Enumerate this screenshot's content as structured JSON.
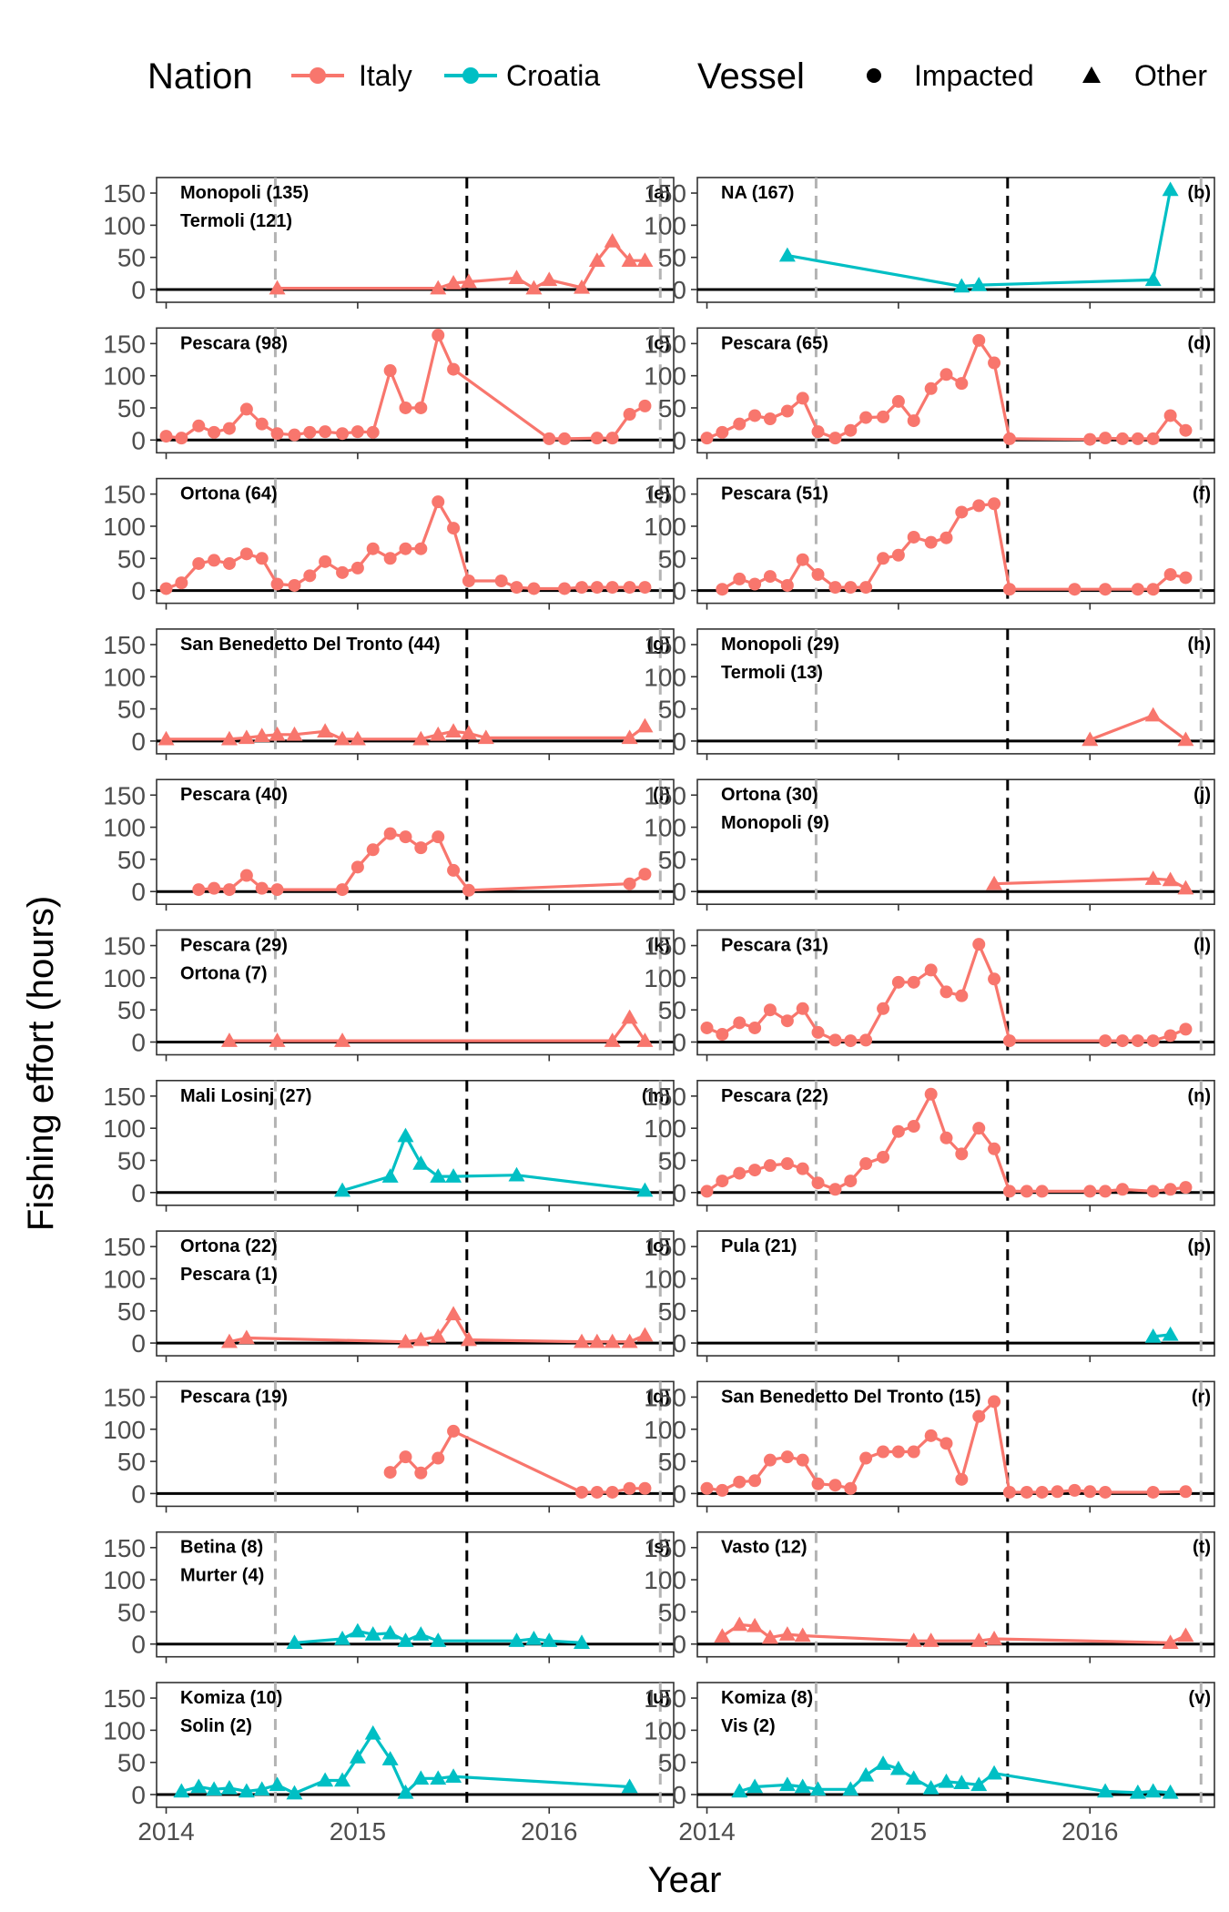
{
  "chart_data": {
    "type": "line",
    "xlabel": "Year",
    "ylabel": "Fishing effort (hours)",
    "xlim": [
      2013.95,
      2016.65
    ],
    "ylim": [
      0,
      160
    ],
    "x_ticks": [
      2014,
      2015,
      2016
    ],
    "x_tick_labels": [
      "2014",
      "2015",
      "2016"
    ],
    "y_ticks": [
      0,
      50,
      100,
      150
    ],
    "y_tick_labels": [
      "0",
      "50",
      "100",
      "150"
    ],
    "grid": false,
    "reference_lines": {
      "gray_dashed": [
        2014.57,
        2016.58
      ],
      "black_dashed": [
        2015.57
      ]
    },
    "legend": {
      "placement": "top",
      "nation_title": "Nation",
      "vessel_title": "Vessel",
      "nation_entries": [
        {
          "name": "Italy",
          "color": "#F8766D"
        },
        {
          "name": "Croatia",
          "color": "#00BFC4"
        }
      ],
      "vessel_entries": [
        {
          "name": "Impacted",
          "shape": "circle"
        },
        {
          "name": "Other",
          "shape": "triangle"
        }
      ]
    },
    "panels": [
      {
        "id": "(a)",
        "ports": [
          "Monopoli (135)",
          "Termoli (121)"
        ],
        "nation": "Italy",
        "vessel": "Other",
        "x": [
          2014.58,
          2015.42,
          2015.5,
          2015.58,
          2015.83,
          2015.92,
          2016.0,
          2016.17,
          2016.25,
          2016.33,
          2016.42,
          2016.5
        ],
        "y": [
          2,
          2,
          10,
          12,
          18,
          2,
          15,
          3,
          45,
          75,
          45,
          45
        ]
      },
      {
        "id": "(b)",
        "ports": [
          "NA (167)"
        ],
        "nation": "Croatia",
        "vessel": "Other",
        "x": [
          2014.42,
          2015.33,
          2015.42,
          2016.33,
          2016.42
        ],
        "y": [
          53,
          5,
          7,
          15,
          155
        ]
      },
      {
        "id": "(c)",
        "ports": [
          "Pescara (98)"
        ],
        "nation": "Italy",
        "vessel": "Impacted",
        "x": [
          2014.0,
          2014.08,
          2014.17,
          2014.25,
          2014.33,
          2014.42,
          2014.5,
          2014.58,
          2014.67,
          2014.75,
          2014.83,
          2014.92,
          2015.0,
          2015.08,
          2015.17,
          2015.25,
          2015.33,
          2015.42,
          2015.5,
          2016.0,
          2016.08,
          2016.25,
          2016.33,
          2016.42,
          2016.5
        ],
        "y": [
          6,
          3,
          22,
          12,
          18,
          48,
          25,
          10,
          8,
          12,
          13,
          10,
          13,
          12,
          108,
          50,
          50,
          163,
          110,
          2,
          2,
          3,
          3,
          40,
          53
        ]
      },
      {
        "id": "(d)",
        "ports": [
          "Pescara (65)"
        ],
        "nation": "Italy",
        "vessel": "Impacted",
        "x": [
          2014.0,
          2014.08,
          2014.17,
          2014.25,
          2014.33,
          2014.42,
          2014.5,
          2014.58,
          2014.67,
          2014.75,
          2014.83,
          2014.92,
          2015.0,
          2015.08,
          2015.17,
          2015.25,
          2015.33,
          2015.42,
          2015.5,
          2015.58,
          2016.0,
          2016.08,
          2016.17,
          2016.25,
          2016.33,
          2016.42,
          2016.5
        ],
        "y": [
          3,
          12,
          25,
          38,
          33,
          45,
          65,
          13,
          3,
          15,
          35,
          36,
          60,
          30,
          80,
          102,
          88,
          155,
          120,
          2,
          1,
          3,
          2,
          2,
          2,
          38,
          15
        ]
      },
      {
        "id": "(e)",
        "ports": [
          "Ortona (64)"
        ],
        "nation": "Italy",
        "vessel": "Impacted",
        "x": [
          2014.0,
          2014.08,
          2014.17,
          2014.25,
          2014.33,
          2014.42,
          2014.5,
          2014.58,
          2014.67,
          2014.75,
          2014.83,
          2014.92,
          2015.0,
          2015.08,
          2015.17,
          2015.25,
          2015.33,
          2015.42,
          2015.5,
          2015.58,
          2015.75,
          2015.83,
          2015.92,
          2016.08,
          2016.17,
          2016.25,
          2016.33,
          2016.42,
          2016.5
        ],
        "y": [
          3,
          12,
          42,
          47,
          42,
          57,
          50,
          10,
          8,
          23,
          45,
          28,
          35,
          65,
          50,
          65,
          65,
          138,
          97,
          15,
          15,
          5,
          3,
          3,
          5,
          5,
          5,
          5,
          5
        ]
      },
      {
        "id": "(f)",
        "ports": [
          "Pescara (51)"
        ],
        "nation": "Italy",
        "vessel": "Impacted",
        "x": [
          2014.08,
          2014.17,
          2014.25,
          2014.33,
          2014.42,
          2014.5,
          2014.58,
          2014.67,
          2014.75,
          2014.83,
          2014.92,
          2015.0,
          2015.08,
          2015.17,
          2015.25,
          2015.33,
          2015.42,
          2015.5,
          2015.58,
          2015.92,
          2016.08,
          2016.25,
          2016.33,
          2016.42,
          2016.5
        ],
        "y": [
          2,
          18,
          10,
          22,
          8,
          48,
          25,
          5,
          5,
          5,
          50,
          55,
          83,
          75,
          82,
          122,
          132,
          135,
          2,
          2,
          2,
          2,
          2,
          25,
          20
        ]
      },
      {
        "id": "(g)",
        "ports": [
          "San Benedetto Del Tronto (44)"
        ],
        "nation": "Italy",
        "vessel": "Other",
        "x": [
          2014.0,
          2014.33,
          2014.42,
          2014.5,
          2014.58,
          2014.67,
          2014.83,
          2014.92,
          2015.0,
          2015.33,
          2015.42,
          2015.5,
          2015.58,
          2015.67,
          2016.42,
          2016.5
        ],
        "y": [
          3,
          3,
          5,
          8,
          10,
          10,
          15,
          3,
          3,
          3,
          10,
          15,
          12,
          5,
          5,
          23
        ]
      },
      {
        "id": "(h)",
        "ports": [
          "Monopoli (29)",
          "Termoli (13)"
        ],
        "nation": "Italy",
        "vessel": "Other",
        "x": [
          2016.0,
          2016.33,
          2016.5
        ],
        "y": [
          2,
          40,
          2
        ]
      },
      {
        "id": "(i)",
        "ports": [
          "Pescara (40)"
        ],
        "nation": "Italy",
        "vessel": "Impacted",
        "x": [
          2014.17,
          2014.25,
          2014.33,
          2014.42,
          2014.5,
          2014.58,
          2014.92,
          2015.0,
          2015.08,
          2015.17,
          2015.25,
          2015.33,
          2015.42,
          2015.5,
          2015.58,
          2016.42,
          2016.5
        ],
        "y": [
          3,
          5,
          3,
          25,
          5,
          3,
          3,
          38,
          65,
          90,
          85,
          68,
          85,
          33,
          2,
          12,
          27
        ]
      },
      {
        "id": "(j)",
        "ports": [
          "Ortona (30)",
          "Monopoli (9)"
        ],
        "nation": "Italy",
        "vessel": "Other",
        "x": [
          2015.5,
          2016.33,
          2016.42,
          2016.5
        ],
        "y": [
          12,
          20,
          18,
          5
        ]
      },
      {
        "id": "(k)",
        "ports": [
          "Pescara (29)",
          "Ortona (7)"
        ],
        "nation": "Italy",
        "vessel": "Other",
        "x": [
          2014.33,
          2014.58,
          2014.92,
          2016.33,
          2016.42,
          2016.5
        ],
        "y": [
          2,
          2,
          2,
          2,
          38,
          2
        ]
      },
      {
        "id": "(l)",
        "ports": [
          "Pescara (31)"
        ],
        "nation": "Italy",
        "vessel": "Impacted",
        "x": [
          2014.0,
          2014.08,
          2014.17,
          2014.25,
          2014.33,
          2014.42,
          2014.5,
          2014.58,
          2014.67,
          2014.75,
          2014.83,
          2014.92,
          2015.0,
          2015.08,
          2015.17,
          2015.25,
          2015.33,
          2015.42,
          2015.5,
          2015.58,
          2016.08,
          2016.17,
          2016.25,
          2016.33,
          2016.42,
          2016.5
        ],
        "y": [
          22,
          12,
          30,
          22,
          50,
          33,
          52,
          15,
          3,
          2,
          3,
          52,
          93,
          93,
          112,
          78,
          72,
          152,
          98,
          2,
          2,
          2,
          2,
          2,
          10,
          20
        ]
      },
      {
        "id": "(m)",
        "ports": [
          "Mali Losinj (27)"
        ],
        "nation": "Croatia",
        "vessel": "Other",
        "x": [
          2014.92,
          2015.17,
          2015.25,
          2015.33,
          2015.42,
          2015.5,
          2015.83,
          2016.5
        ],
        "y": [
          3,
          25,
          88,
          45,
          25,
          25,
          27,
          3
        ]
      },
      {
        "id": "(n)",
        "ports": [
          "Pescara (22)"
        ],
        "nation": "Italy",
        "vessel": "Impacted",
        "x": [
          2014.0,
          2014.08,
          2014.17,
          2014.25,
          2014.33,
          2014.42,
          2014.5,
          2014.58,
          2014.67,
          2014.75,
          2014.83,
          2014.92,
          2015.0,
          2015.08,
          2015.17,
          2015.25,
          2015.33,
          2015.42,
          2015.5,
          2015.58,
          2015.67,
          2015.75,
          2016.0,
          2016.08,
          2016.17,
          2016.33,
          2016.42,
          2016.5
        ],
        "y": [
          2,
          18,
          30,
          35,
          42,
          45,
          37,
          15,
          5,
          18,
          45,
          55,
          95,
          103,
          153,
          85,
          60,
          100,
          68,
          2,
          2,
          2,
          2,
          2,
          5,
          2,
          5,
          8
        ]
      },
      {
        "id": "(o)",
        "ports": [
          "Ortona (22)",
          "Pescara (1)"
        ],
        "nation": "Italy",
        "vessel": "Other",
        "x": [
          2014.33,
          2014.42,
          2015.25,
          2015.33,
          2015.42,
          2015.5,
          2015.58,
          2016.17,
          2016.25,
          2016.33,
          2016.42,
          2016.5
        ],
        "y": [
          2,
          8,
          2,
          5,
          10,
          45,
          5,
          2,
          2,
          2,
          2,
          12
        ]
      },
      {
        "id": "(p)",
        "ports": [
          "Pula (21)"
        ],
        "nation": "Croatia",
        "vessel": "Other",
        "x": [
          2016.33,
          2016.42
        ],
        "y": [
          10,
          13
        ]
      },
      {
        "id": "(q)",
        "ports": [
          "Pescara (19)"
        ],
        "nation": "Italy",
        "vessel": "Impacted",
        "x": [
          2015.17,
          2015.25,
          2015.33,
          2015.42,
          2015.5,
          2016.17,
          2016.25,
          2016.33,
          2016.42,
          2016.5
        ],
        "y": [
          33,
          57,
          32,
          55,
          97,
          2,
          2,
          2,
          8,
          8
        ]
      },
      {
        "id": "(r)",
        "ports": [
          "San Benedetto Del Tronto (15)"
        ],
        "nation": "Italy",
        "vessel": "Impacted",
        "x": [
          2014.0,
          2014.08,
          2014.17,
          2014.25,
          2014.33,
          2014.42,
          2014.5,
          2014.58,
          2014.67,
          2014.75,
          2014.83,
          2014.92,
          2015.0,
          2015.08,
          2015.17,
          2015.25,
          2015.33,
          2015.42,
          2015.5,
          2015.58,
          2015.67,
          2015.75,
          2015.83,
          2015.92,
          2016.0,
          2016.08,
          2016.33,
          2016.5
        ],
        "y": [
          8,
          5,
          18,
          20,
          52,
          57,
          52,
          15,
          13,
          8,
          55,
          65,
          65,
          65,
          90,
          78,
          22,
          120,
          143,
          2,
          2,
          2,
          3,
          5,
          3,
          2,
          2,
          3
        ]
      },
      {
        "id": "(s)",
        "ports": [
          "Betina (8)",
          "Murter (4)"
        ],
        "nation": "Croatia",
        "vessel": "Other",
        "x": [
          2014.67,
          2014.92,
          2015.0,
          2015.08,
          2015.17,
          2015.25,
          2015.33,
          2015.42,
          2015.83,
          2015.92,
          2016.0,
          2016.17
        ],
        "y": [
          2,
          8,
          20,
          15,
          17,
          5,
          15,
          5,
          5,
          8,
          5,
          2
        ]
      },
      {
        "id": "(t)",
        "ports": [
          "Vasto (12)"
        ],
        "nation": "Italy",
        "vessel": "Other",
        "x": [
          2014.08,
          2014.17,
          2014.25,
          2014.33,
          2014.42,
          2014.5,
          2015.08,
          2015.17,
          2015.42,
          2015.5,
          2016.42,
          2016.5
        ],
        "y": [
          12,
          30,
          28,
          10,
          15,
          13,
          5,
          5,
          5,
          8,
          2,
          13
        ]
      },
      {
        "id": "(u)",
        "ports": [
          "Komiza (10)",
          "Solin (2)"
        ],
        "nation": "Croatia",
        "vessel": "Other",
        "x": [
          2014.08,
          2014.17,
          2014.25,
          2014.33,
          2014.42,
          2014.5,
          2014.58,
          2014.67,
          2014.83,
          2014.92,
          2015.0,
          2015.08,
          2015.17,
          2015.25,
          2015.33,
          2015.42,
          2015.5,
          2016.42
        ],
        "y": [
          5,
          12,
          8,
          10,
          5,
          8,
          15,
          2,
          22,
          22,
          58,
          95,
          55,
          3,
          25,
          25,
          28,
          12
        ]
      },
      {
        "id": "(v)",
        "ports": [
          "Komiza (8)",
          "Vis (2)"
        ],
        "nation": "Croatia",
        "vessel": "Other",
        "x": [
          2014.17,
          2014.25,
          2014.42,
          2014.5,
          2014.58,
          2014.75,
          2014.83,
          2014.92,
          2015.0,
          2015.08,
          2015.17,
          2015.25,
          2015.33,
          2015.42,
          2015.5,
          2016.08,
          2016.25,
          2016.33,
          2016.42
        ],
        "y": [
          5,
          12,
          15,
          12,
          8,
          8,
          30,
          48,
          40,
          25,
          10,
          20,
          18,
          15,
          33,
          5,
          3,
          5,
          3
        ]
      }
    ]
  }
}
